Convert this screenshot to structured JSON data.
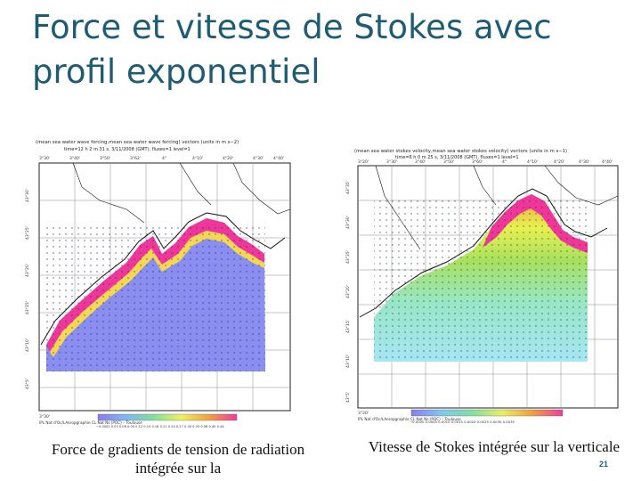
{
  "slide": {
    "title": "Force et vitesse de Stokes avec profil exponentiel",
    "page_number": "21"
  },
  "left_map": {
    "header_line1": "(mean sea water wave forcing,mean sea water wave forcing) vectors (units in m s−2)",
    "header_line2": "time=12 h 2 m 31 s, 3/11/2008 (GMT), fluxes=1 level=1",
    "lon_ticks": [
      "3°30'",
      "3°40'",
      "3°50'",
      "3°62'",
      "4°",
      "4°10'",
      "4°20'",
      "4°30'",
      "4°40'"
    ],
    "lat_ticks": [
      "43°30'",
      "43°25'",
      "43°20'",
      "43°15'",
      "43°10'",
      "43°5'"
    ],
    "footer_label": "IPL Nat d'Oc/LAeropgraphie CL Nat Ns (POC) – Toulouse",
    "colorbar_labels": "−0.0002 0.03 0.06 0.09 0.12 0.15 0.18 0.21 0.24 0.27 0.30 0.33 0.36 0.40 0.44",
    "caption": "Force de gradients de tension de radiation intégrée sur la",
    "colors": {
      "field": "#8a8ef0",
      "coast_high": "#f0369a",
      "coast_mid": "#ffe040"
    }
  },
  "right_map": {
    "header_line1": "(mean sea water stokes velocity,mean sea water stokes velocity) vectors (units in m s−1)",
    "header_line2": "time=6 h 0 m 25 s, 3/11/2008 (GMT), fluxes=1 level=1",
    "lon_ticks": [
      "3°20'",
      "3°30'",
      "3°40'",
      "3°50'",
      "3°60'",
      "4°",
      "4°10'",
      "4°20'",
      "4°30'",
      "4°40'"
    ],
    "lat_ticks": [
      "43°35'",
      "43°30'",
      "43°25'",
      "43°20'",
      "43°15'",
      "43°10'",
      "43°5'"
    ],
    "footer_label": "IPL Nat d'Oc/LAeropgraphie CL Nat Ns (POC) – Toulouse",
    "colorbar_labels": "−0.0000 0.0005 0.0010 0.0015 0.0020 0.0025 0.0030 0.0035",
    "caption": "Vitesse de Stokes intégrée sur la verticale",
    "colors": {
      "field_offshore": "#9fe3f0",
      "field_mid": "#a8e060",
      "coast_high": "#f0369a"
    }
  }
}
